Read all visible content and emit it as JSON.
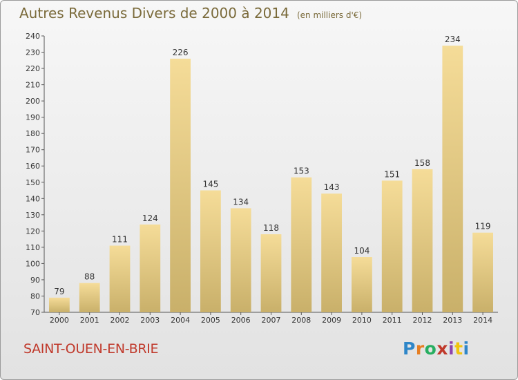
{
  "title": "Autres Revenus Divers de 2000 à 2014",
  "unit": "(en milliers d'€)",
  "commune": "SAINT-OUEN-EN-BRIE",
  "logo": {
    "letters": [
      "P",
      "r",
      "o",
      "x",
      "i",
      "t",
      "i"
    ],
    "colors": [
      "#2e86c8",
      "#e67e22",
      "#27ae60",
      "#c0392b",
      "#8e44ad",
      "#f1c40f",
      "#2e86c8"
    ]
  },
  "colors": {
    "bar_light": "#f5dc98",
    "bar_dark": "#c9b06a",
    "text": "#7a6a3a",
    "commune": "#c0392b"
  },
  "chart_data": {
    "type": "bar",
    "categories": [
      "2000",
      "2001",
      "2002",
      "2003",
      "2004",
      "2005",
      "2006",
      "2007",
      "2008",
      "2009",
      "2010",
      "2011",
      "2012",
      "2013",
      "2014"
    ],
    "values": [
      79,
      88,
      111,
      124,
      226,
      145,
      134,
      118,
      153,
      143,
      104,
      151,
      158,
      234,
      119
    ],
    "ylim": [
      70,
      240
    ],
    "ytick_step": 10,
    "grid": false
  }
}
